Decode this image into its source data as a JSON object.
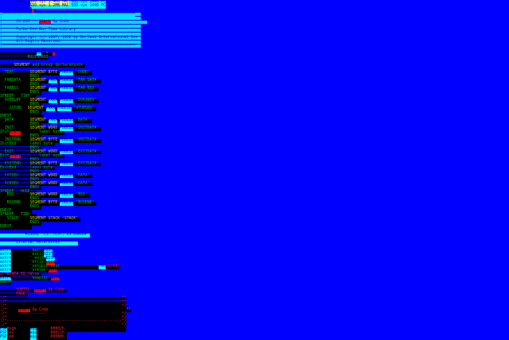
{
  "colors": {
    "background": "#0000ff",
    "label_bg": "#000000",
    "label_fg": "#00c000",
    "keyword_fg": "#c0c000",
    "highlight_cyan": "#00ffff",
    "highlight_red": "#ff0000",
    "highlight_yellow": "#ffff40"
  },
  "lines": [
    [
      [
        "       NAME  ",
        "w"
      ],
      [
        "SDD.sys 1.4MB MAC",
        "yb"
      ],
      [
        " SDD.sys 1440 PC",
        "c"
      ]
    ],
    [
      [
        "             ",
        "w"
      ],
      [
        "SDD.sys 1.2MB MAC SDD.sys 1440 PC",
        "c"
      ]
    ],
    [
      [
        "       INCLUDE",
        "w"
      ],
      [
        " ",
        "r"
      ]
    ],
    [
      [
        ";==========================================================",
        "band"
      ]
    ],
    [
      [
        ";                                                          ",
        "band"
      ]
    ],
    [
      [
        ";      C0.ASM -- ",
        "band"
      ],
      [
        "Start",
        "r"
      ],
      [
        " Up Code                                  ",
        "band"
      ]
    ],
    [
      [
        ";                                                          ",
        "band"
      ]
    ],
    [
      [
        ";      Turbo C++ Run Time Library                          ",
        "band"
      ]
    ],
    [
      [
        ";                                                          ",
        "band"
      ]
    ],
    [
      [
        ";      Copyright (c) 1987, 1992 by Borland International Inc",
        "band"
      ]
    ],
    [
      [
        ";      All Rights Reserved.                                ",
        "band"
      ]
    ],
    [
      [
        ";==========================================================",
        "band"
      ]
    ],
    [
      [
        " ",
        "w"
      ]
    ],
    [
      [
        "                ",
        "k"
      ],
      [
        "C0",
        "c"
      ],
      [
        "  =  ",
        "k"
      ],
      [
        " ",
        "r"
      ]
    ],
    [
      [
        "            RULES.ASI",
        "k"
      ]
    ],
    [
      [
        " ",
        "w"
      ]
    ],
    [
      [
        "      ",
        "k"
      ],
      [
        "SEGMENT",
        "y"
      ],
      [
        " and Group declarations ",
        "k"
      ]
    ],
    [
      [
        " ",
        "w"
      ]
    ],
    [
      [
        " _TEXT       ",
        "k"
      ],
      [
        "SEGMENT BYTE ",
        "y"
      ],
      [
        "PUBLIC",
        "c"
      ],
      [
        " 'CODE' ",
        "k"
      ]
    ],
    [
      [
        "             ENDS ",
        "k"
      ]
    ],
    [
      [
        " _FARDATA    ",
        "k"
      ],
      [
        "SEGMENT ",
        "y"
      ],
      [
        "PARA",
        "c"
      ],
      [
        " ",
        "k"
      ],
      [
        "PUBLIC",
        "c"
      ],
      [
        " 'FAR_DATA' ",
        "k"
      ]
    ],
    [
      [
        "             ENDS ",
        "k"
      ]
    ],
    [
      [
        " _FARBSS     ",
        "k"
      ],
      [
        "SEGMENT ",
        "y"
      ],
      [
        "PARA",
        "c"
      ],
      [
        " ",
        "k"
      ],
      [
        "PUBLIC",
        "c"
      ],
      [
        " 'FAR_BSS' ",
        "k"
      ]
    ],
    [
      [
        "             ENDS ",
        "k"
      ]
    ],
    [
      [
        "IFNDEF __TINY__ ",
        "k"
      ]
    ],
    [
      [
        " _OVERLAY_   ",
        "k"
      ],
      [
        "SEGMENT ",
        "y"
      ],
      [
        "PARA",
        "c"
      ],
      [
        " ",
        "k"
      ],
      [
        "PUBLIC",
        "c"
      ],
      [
        " 'OVRINFO' ",
        "k"
      ]
    ],
    [
      [
        "             ENDS ",
        "k"
      ]
    ],
    [
      [
        "   _1STUB_  ",
        "k"
      ],
      [
        "SEGMENT ",
        "y"
      ],
      [
        "PARA",
        "c"
      ],
      [
        " ",
        "k"
      ],
      [
        "PUBLIC",
        "c"
      ],
      [
        " 'STUBSEG' ",
        "k"
      ]
    ],
    [
      [
        "             ENDS ",
        "k"
      ]
    ],
    [
      [
        "ENDIF              ",
        "k"
      ]
    ],
    [
      [
        " _DATA       ",
        "k"
      ],
      [
        "SEGMENT ",
        "y"
      ],
      [
        "PARA",
        "c"
      ],
      [
        " ",
        "k"
      ],
      [
        "PUBLIC",
        "c"
      ],
      [
        " 'DATA' ",
        "k"
      ]
    ],
    [
      [
        "             ENDS ",
        "k"
      ]
    ],
    [
      [
        " _INIT_      ",
        "k"
      ],
      [
        "SEGMENT WORD ",
        "y"
      ],
      [
        "PUBLIC",
        "c"
      ],
      [
        " 'INITDATA' ",
        "k"
      ]
    ],
    [
      [
        "Init",
        "k"
      ],
      [
        "Start",
        "r"
      ],
      [
        "        label byte ",
        "k"
      ]
    ],
    [
      [
        "             ENDS ",
        "k"
      ]
    ],
    [
      [
        " _INITEND_   ",
        "k"
      ],
      [
        "SEGMENT BYTE ",
        "y"
      ],
      [
        "PUBLIC",
        "c"
      ],
      [
        " 'INITDATA' ",
        "k"
      ]
    ],
    [
      [
        "InitEnd      label byte ",
        "k"
      ]
    ],
    [
      [
        "             ENDS ",
        "k"
      ]
    ],
    [
      [
        " _EXIT_      ",
        "k"
      ],
      [
        "SEGMENT WORD ",
        "y"
      ],
      [
        "PUBLIC",
        "c"
      ],
      [
        " 'EXITDATA' ",
        "k"
      ]
    ],
    [
      [
        "Exit",
        "k"
      ],
      [
        "Start",
        "r"
      ],
      [
        "        label byte ",
        "k"
      ]
    ],
    [
      [
        "             ENDS ",
        "k"
      ]
    ],
    [
      [
        " _EXITEND_   ",
        "k"
      ],
      [
        "SEGMENT BYTE ",
        "y"
      ],
      [
        "PUBLIC",
        "c"
      ],
      [
        " 'EXITDATA' ",
        "k"
      ]
    ],
    [
      [
        "ExitEnd      label byte ",
        "k"
      ]
    ],
    [
      [
        "             ENDS ",
        "k"
      ]
    ],
    [
      [
        " _CVTSEG     ",
        "k"
      ],
      [
        "SEGMENT WORD ",
        "y"
      ],
      [
        "PUBLIC",
        "c"
      ],
      [
        " 'DATA' ",
        "k"
      ]
    ],
    [
      [
        "             ENDS ",
        "k"
      ]
    ],
    [
      [
        " _SCNSEG     ",
        "k"
      ],
      [
        "SEGMENT WORD ",
        "y"
      ],
      [
        "PUBLIC",
        "c"
      ],
      [
        " 'DATA' ",
        "k"
      ]
    ],
    [
      [
        "             ENDS ",
        "k"
      ]
    ],
    [
      [
        "IFNDEF __HUGE__ ",
        "k"
      ]
    ],
    [
      [
        "  _BSS       ",
        "k"
      ],
      [
        "SEGMENT WORD ",
        "y"
      ],
      [
        "PUBLIC",
        "c"
      ],
      [
        " 'BSS' ",
        "k"
      ]
    ],
    [
      [
        "             ENDS ",
        "k"
      ]
    ],
    [
      [
        "  _BSSEND    ",
        "k"
      ],
      [
        "SEGMENT BYTE ",
        "y"
      ],
      [
        "PUBLIC",
        "c"
      ],
      [
        " 'BSSEND' ",
        "k"
      ]
    ],
    [
      [
        "             ENDS ",
        "k"
      ]
    ],
    [
      [
        "ENDIF         ",
        "k"
      ]
    ],
    [
      [
        "IFNDEF __TINY__ ",
        "k"
      ]
    ],
    [
      [
        "  _STACK     ",
        "k"
      ],
      [
        "SEGMENT STACK 'STACK' ",
        "y"
      ]
    ],
    [
      [
        "             ENDS ",
        "k"
      ]
    ],
    [
      [
        "ENDIF         ",
        "k"
      ]
    ],
    [
      [
        " ",
        "w"
      ]
    ],
    [
      [
        "           ASSUME  CS:_TEXT, DS:DGROUP ",
        "c"
      ]
    ],
    [
      [
        " ",
        "w"
      ]
    ],
    [
      [
        "  ",
        "c"
      ],
      [
        "     External References        ",
        "c"
      ]
    ],
    [
      [
        " ",
        "w"
      ]
    ],
    [
      [
        "extrn",
        "c"
      ],
      [
        "        _main:",
        "k"
      ],
      [
        "DIST",
        "c"
      ]
    ],
    [
      [
        "extrn",
        "c"
      ],
      [
        "        _exit:",
        "k"
      ],
      [
        "DIST",
        "c"
      ]
    ],
    [
      [
        "extrn",
        "c"
      ],
      [
        "        __exit:",
        "k"
      ],
      [
        "DIST",
        "c"
      ]
    ],
    [
      [
        "extrn",
        "c"
      ],
      [
        "        _nfile:",
        "k"
      ],
      [
        "word",
        "r"
      ]
    ],
    [
      [
        "extrn",
        "c"
      ],
      [
        "        _setupio:near                ;",
        "k"
      ],
      [
        "req",
        "c"
      ],
      [
        "uired!",
        "kr"
      ]
    ],
    [
      [
        "extrn",
        "c"
      ],
      [
        "        _stklen:",
        "k"
      ],
      [
        "word",
        "r"
      ]
    ],
    [
      [
        "IF LDATA EQ false ",
        "kr"
      ]
    ],
    [
      [
        "extrn",
        "c"
      ],
      [
        "        _heaplen:",
        "k"
      ],
      [
        "word",
        "r"
      ]
    ],
    [
      [
        "ENDIF",
        "k"
      ]
    ],
    [
      [
        " ",
        "w"
      ]
    ],
    [
      [
        "       SUBTTL  ",
        "kr"
      ],
      [
        "Start",
        "r"
      ],
      [
        " Up Code ",
        "kr"
      ]
    ],
    [
      [
        "       PAGE ",
        "kr"
      ]
    ],
    [
      [
        ";/*                                                  */",
        "kr"
      ]
    ],
    [
      [
        ";/*--------------------------------------------------*/",
        "kr"
      ]
    ],
    [
      [
        ";/*                                                  */",
        "kr"
      ]
    ],
    [
      [
        ";/*     ",
        "kr"
      ],
      [
        "Start",
        "r"
      ],
      [
        " Up Code                                  */",
        "kr"
      ]
    ],
    [
      [
        ";/*     ------------                                 */",
        "kr"
      ]
    ],
    [
      [
        ";/*                                                  */",
        "kr"
      ]
    ],
    [
      [
        ";/*--------------------------------------------------*/",
        "kr"
      ]
    ],
    [
      [
        ";/*                                                  */",
        "kr"
      ]
    ],
    [
      [
        "PSP",
        "c"
      ],
      [
        "High      ",
        "kr"
      ],
      [
        "equ",
        "c"
      ],
      [
        "      00002h ",
        "kr"
      ]
    ],
    [
      [
        "PSP",
        "c"
      ],
      [
        "Env       ",
        "kr"
      ],
      [
        "equ",
        "c"
      ],
      [
        "      0002ch ",
        "kr"
      ]
    ],
    [
      [
        "PSP",
        "c"
      ],
      [
        "Cmd       ",
        "kr"
      ],
      [
        "equ",
        "c"
      ],
      [
        "      00080h ",
        "kr"
      ]
    ]
  ]
}
